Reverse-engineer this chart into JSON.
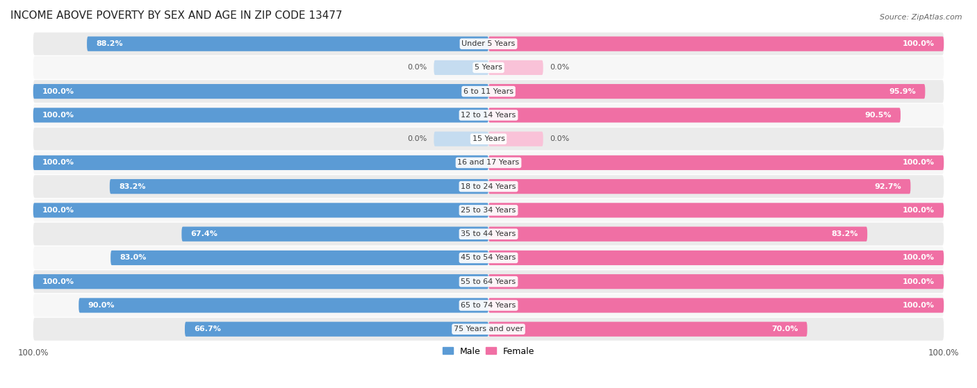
{
  "title": "INCOME ABOVE POVERTY BY SEX AND AGE IN ZIP CODE 13477",
  "source": "Source: ZipAtlas.com",
  "categories": [
    "Under 5 Years",
    "5 Years",
    "6 to 11 Years",
    "12 to 14 Years",
    "15 Years",
    "16 and 17 Years",
    "18 to 24 Years",
    "25 to 34 Years",
    "35 to 44 Years",
    "45 to 54 Years",
    "55 to 64 Years",
    "65 to 74 Years",
    "75 Years and over"
  ],
  "male_values": [
    88.2,
    0.0,
    100.0,
    100.0,
    0.0,
    100.0,
    83.2,
    100.0,
    67.4,
    83.0,
    100.0,
    90.0,
    66.7
  ],
  "female_values": [
    100.0,
    0.0,
    95.9,
    90.5,
    0.0,
    100.0,
    92.7,
    100.0,
    83.2,
    100.0,
    100.0,
    100.0,
    70.0
  ],
  "male_color": "#5b9bd5",
  "female_color": "#f06fa4",
  "male_color_light": "#c5dcf0",
  "female_color_light": "#f9c2d8",
  "row_bg_odd": "#ebebeb",
  "row_bg_even": "#f7f7f7",
  "title_fontsize": 11,
  "source_fontsize": 8,
  "label_fontsize": 8,
  "cat_fontsize": 8,
  "zero_stub": 12.0,
  "xlim_left": -100,
  "xlim_right": 100
}
